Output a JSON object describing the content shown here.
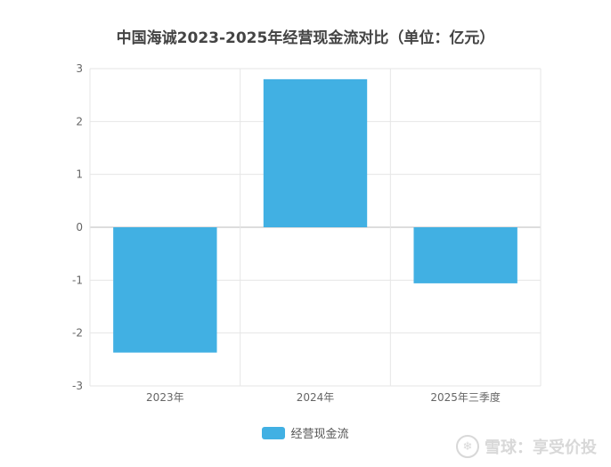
{
  "chart_data": {
    "type": "bar",
    "title": "中国海诚2023-2025年经营现金流对比（单位：亿元）",
    "categories": [
      "2023年",
      "2024年",
      "2025年三季度"
    ],
    "series": [
      {
        "name": "经营现金流",
        "values": [
          -2.37,
          2.8,
          -1.06
        ]
      }
    ],
    "ylim": [
      -3,
      3
    ],
    "yticks": [
      3,
      2,
      1,
      0,
      -1,
      -2,
      -3
    ],
    "grid": true,
    "legend_position": "bottom-center",
    "bar_color": "#41b0e3",
    "grid_color": "#e6e6e6",
    "zero_line_color": "#bbbbbb"
  },
  "watermark": {
    "text": "雪球：享受价投",
    "logo_icon": "snowball-logo-icon"
  }
}
